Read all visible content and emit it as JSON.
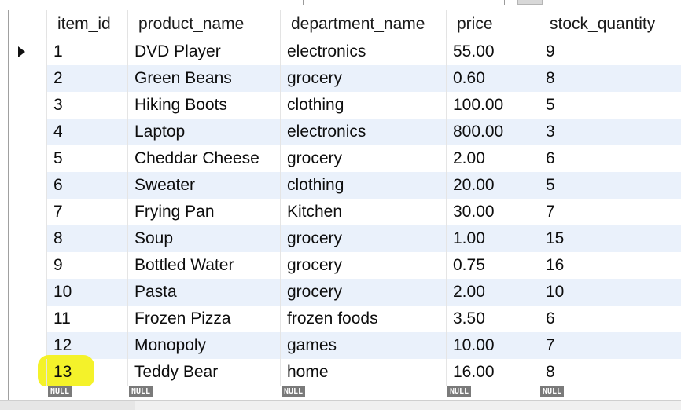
{
  "columns": [
    "item_id",
    "product_name",
    "department_name",
    "price",
    "stock_quantity"
  ],
  "rows": [
    [
      "1",
      "DVD Player",
      "electronics",
      "55.00",
      "9"
    ],
    [
      "2",
      "Green Beans",
      "grocery",
      "0.60",
      "8"
    ],
    [
      "3",
      "Hiking Boots",
      "clothing",
      "100.00",
      "5"
    ],
    [
      "4",
      "Laptop",
      "electronics",
      "800.00",
      "3"
    ],
    [
      "5",
      "Cheddar Cheese",
      "grocery",
      "2.00",
      "6"
    ],
    [
      "6",
      "Sweater",
      "clothing",
      "20.00",
      "5"
    ],
    [
      "7",
      "Frying Pan",
      "Kitchen",
      "30.00",
      "7"
    ],
    [
      "8",
      "Soup",
      "grocery",
      "1.00",
      "15"
    ],
    [
      "9",
      "Bottled Water",
      "grocery",
      "0.75",
      "16"
    ],
    [
      "10",
      "Pasta",
      "grocery",
      "2.00",
      "10"
    ],
    [
      "11",
      "Frozen Pizza",
      "frozen foods",
      "3.50",
      "6"
    ],
    [
      "12",
      "Monopoly",
      "games",
      "10.00",
      "7"
    ],
    [
      "13",
      "Teddy Bear",
      "home",
      "16.00",
      "8"
    ]
  ],
  "null_label": "NULL",
  "current_row_indicator": "arrow-right-icon",
  "highlighted_row": 13,
  "highlight_color": "#f4f22a",
  "alternate_row_color": "#eaf1fb"
}
